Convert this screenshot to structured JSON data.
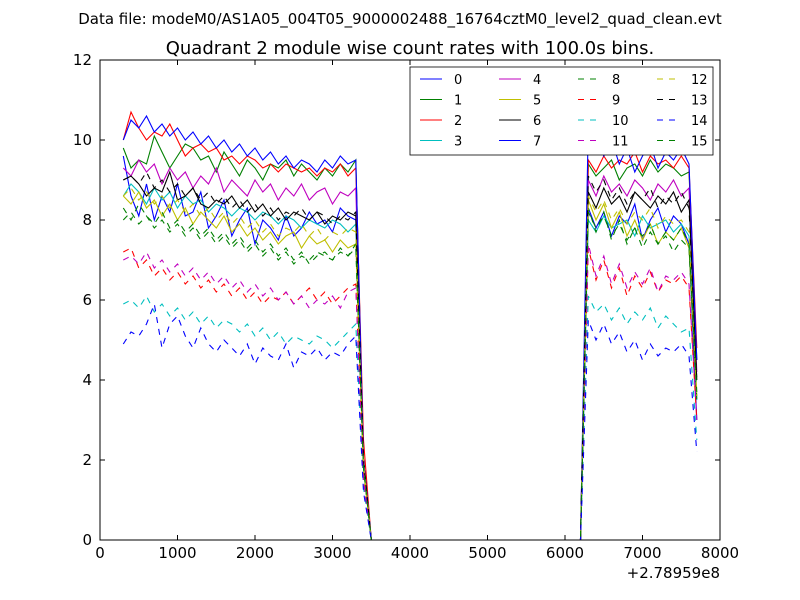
{
  "figure": {
    "suptitle": "Data file: modeM0/AS1A05_004T05_9000002488_16764cztM0_level2_quad_clean.evt"
  },
  "chart_data": {
    "type": "line",
    "title": "Quadrant 2 module wise count rates with 100.0s bins.",
    "xlabel": "",
    "ylabel": "",
    "x_offset_label": "+2.78959e8",
    "xlim": [
      0,
      8000
    ],
    "ylim": [
      0,
      12
    ],
    "xticks": [
      0,
      1000,
      2000,
      3000,
      4000,
      5000,
      6000,
      7000,
      8000
    ],
    "yticks": [
      0,
      2,
      4,
      6,
      8,
      10,
      12
    ],
    "grid": false,
    "legend_position": "top-right",
    "legend_columns": 4,
    "x": [
      300,
      400,
      500,
      600,
      700,
      800,
      900,
      1000,
      1100,
      1200,
      1300,
      1400,
      1500,
      1600,
      1700,
      1800,
      1900,
      2000,
      2100,
      2200,
      2300,
      2400,
      2500,
      2600,
      2700,
      2800,
      2900,
      3000,
      3100,
      3200,
      3300,
      3400,
      3500,
      3600,
      3700,
      3800,
      3900,
      4000,
      4500,
      5000,
      5500,
      6000,
      6100,
      6200,
      6300,
      6400,
      6500,
      6600,
      6700,
      6800,
      6900,
      7000,
      7100,
      7200,
      7300,
      7400,
      7500,
      7600,
      7700
    ],
    "series": [
      {
        "name": "0",
        "color": "#0000ff",
        "dash": "solid",
        "values": [
          9.6,
          8.6,
          8.1,
          8.9,
          8.0,
          8.6,
          8.2,
          8.9,
          8.1,
          8.2,
          8.7,
          7.8,
          8.1,
          8.5,
          7.6,
          8.0,
          8.3,
          7.4,
          8.0,
          7.8,
          7.5,
          8.1,
          7.6,
          7.8,
          8.2,
          7.9,
          8.0,
          7.7,
          8.3,
          8.1,
          8.0,
          2.0,
          0.0,
          0.0,
          0.0,
          0.0,
          0.0,
          0.0,
          0.0,
          0.0,
          0.0,
          0.0,
          0.0,
          0.0,
          8.3,
          7.8,
          8.2,
          7.6,
          8.1,
          7.9,
          8.4,
          7.5,
          8.0,
          8.3,
          7.7,
          8.1,
          7.9,
          7.4,
          3.0
        ]
      },
      {
        "name": "1",
        "color": "#008000",
        "dash": "solid",
        "values": [
          9.8,
          9.3,
          9.5,
          9.4,
          10.1,
          9.7,
          9.3,
          9.6,
          9.9,
          9.8,
          9.5,
          9.6,
          9.2,
          9.7,
          9.4,
          9.1,
          9.5,
          9.3,
          9.0,
          9.4,
          9.3,
          9.5,
          9.1,
          9.4,
          9.2,
          9.0,
          9.3,
          9.1,
          9.4,
          9.2,
          9.5,
          2.0,
          0.0,
          0.0,
          0.0,
          0.0,
          0.0,
          0.0,
          0.0,
          0.0,
          0.0,
          0.0,
          0.0,
          0.0,
          9.4,
          9.1,
          9.3,
          9.5,
          9.0,
          9.3,
          9.4,
          9.1,
          9.5,
          9.2,
          9.4,
          9.3,
          9.1,
          9.2,
          4.5
        ]
      },
      {
        "name": "2",
        "color": "#ff0000",
        "dash": "solid",
        "values": [
          10.0,
          10.7,
          10.3,
          10.0,
          10.2,
          10.1,
          10.4,
          10.0,
          9.6,
          9.8,
          9.9,
          9.7,
          9.8,
          9.5,
          9.6,
          9.4,
          9.6,
          9.5,
          9.3,
          9.4,
          9.2,
          9.4,
          9.3,
          9.2,
          9.3,
          9.1,
          9.3,
          9.2,
          9.4,
          9.1,
          9.3,
          2.5,
          0.0,
          0.0,
          0.0,
          0.0,
          0.0,
          0.0,
          0.0,
          0.0,
          0.0,
          0.0,
          0.0,
          0.0,
          9.5,
          9.2,
          9.6,
          9.3,
          9.5,
          9.4,
          9.7,
          9.2,
          9.6,
          9.4,
          9.5,
          9.3,
          9.6,
          9.3,
          4.8
        ]
      },
      {
        "name": "3",
        "color": "#00bfbf",
        "dash": "solid",
        "values": [
          8.6,
          8.9,
          8.7,
          8.4,
          8.8,
          8.5,
          8.7,
          8.3,
          8.6,
          8.4,
          8.5,
          8.2,
          8.4,
          8.3,
          8.1,
          8.3,
          8.2,
          8.0,
          8.2,
          8.1,
          7.9,
          8.1,
          8.0,
          7.8,
          8.0,
          7.9,
          7.8,
          8.0,
          7.9,
          7.7,
          7.9,
          2.0,
          0.0,
          0.0,
          0.0,
          0.0,
          0.0,
          0.0,
          0.0,
          0.0,
          0.0,
          0.0,
          0.0,
          0.0,
          8.0,
          7.7,
          8.1,
          7.8,
          7.9,
          8.0,
          7.6,
          8.1,
          7.8,
          7.9,
          8.0,
          7.7,
          7.9,
          7.6,
          3.5
        ]
      },
      {
        "name": "4",
        "color": "#bf00bf",
        "dash": "solid",
        "values": [
          9.3,
          9.1,
          9.5,
          9.2,
          9.4,
          8.9,
          9.3,
          9.0,
          9.2,
          8.8,
          9.1,
          8.9,
          9.3,
          8.7,
          9.0,
          8.8,
          8.6,
          9.0,
          8.7,
          8.9,
          8.5,
          8.8,
          8.6,
          8.9,
          8.5,
          8.7,
          8.8,
          8.4,
          8.7,
          8.6,
          8.8,
          2.0,
          0.0,
          0.0,
          0.0,
          0.0,
          0.0,
          0.0,
          0.0,
          0.0,
          0.0,
          0.0,
          0.0,
          0.0,
          9.0,
          8.6,
          9.1,
          8.7,
          8.9,
          8.6,
          9.0,
          8.8,
          8.5,
          8.9,
          8.7,
          9.0,
          8.6,
          8.8,
          4.2
        ]
      },
      {
        "name": "5",
        "color": "#bfbf00",
        "dash": "solid",
        "values": [
          8.6,
          8.4,
          8.7,
          8.3,
          8.5,
          8.1,
          8.4,
          8.0,
          8.3,
          7.9,
          8.2,
          8.0,
          7.8,
          8.1,
          7.7,
          7.9,
          7.6,
          7.8,
          7.5,
          7.7,
          7.4,
          7.6,
          7.7,
          7.3,
          7.6,
          7.4,
          7.5,
          7.2,
          7.5,
          7.3,
          7.4,
          1.8,
          0.0,
          0.0,
          0.0,
          0.0,
          0.0,
          0.0,
          0.0,
          0.0,
          0.0,
          0.0,
          0.0,
          0.0,
          8.5,
          8.0,
          8.4,
          7.8,
          8.2,
          7.6,
          8.0,
          7.5,
          7.9,
          7.4,
          7.7,
          7.5,
          7.8,
          7.3,
          3.6
        ]
      },
      {
        "name": "6",
        "color": "#000000",
        "dash": "solid",
        "values": [
          9.0,
          9.1,
          8.9,
          8.6,
          8.8,
          8.7,
          9.2,
          8.5,
          8.6,
          8.8,
          8.4,
          8.3,
          8.5,
          8.4,
          8.6,
          8.3,
          8.5,
          8.2,
          8.4,
          8.1,
          8.3,
          8.0,
          8.2,
          8.1,
          8.0,
          8.2,
          7.9,
          8.1,
          8.0,
          8.2,
          8.1,
          2.0,
          0.0,
          0.0,
          0.0,
          0.0,
          0.0,
          0.0,
          0.0,
          0.0,
          0.0,
          0.0,
          0.0,
          0.0,
          8.7,
          8.3,
          8.8,
          8.4,
          8.6,
          8.2,
          8.7,
          8.5,
          8.3,
          8.6,
          8.4,
          8.7,
          8.2,
          8.5,
          4.0
        ]
      },
      {
        "name": "7",
        "color": "#0000ff",
        "dash": "solid",
        "values": [
          10.0,
          10.5,
          10.3,
          10.6,
          10.2,
          10.4,
          10.1,
          10.3,
          10.0,
          10.2,
          9.9,
          10.1,
          9.8,
          10.0,
          9.7,
          9.9,
          9.6,
          9.8,
          9.5,
          9.7,
          9.4,
          9.6,
          9.3,
          9.5,
          9.4,
          9.2,
          9.5,
          9.3,
          9.6,
          9.4,
          9.5,
          2.0,
          0.0,
          0.0,
          0.0,
          0.0,
          0.0,
          0.0,
          0.0,
          0.0,
          0.0,
          0.0,
          0.0,
          0.0,
          10.4,
          10.5,
          9.6,
          10.0,
          9.4,
          9.8,
          9.2,
          9.6,
          9.9,
          9.3,
          9.7,
          9.5,
          9.8,
          9.4,
          4.5
        ]
      },
      {
        "name": "8",
        "color": "#008000",
        "dash": "dashed",
        "values": [
          8.3,
          8.0,
          8.4,
          8.1,
          7.9,
          8.2,
          7.8,
          8.0,
          7.7,
          7.9,
          7.6,
          7.8,
          7.5,
          7.7,
          7.4,
          7.6,
          7.3,
          7.5,
          7.2,
          7.4,
          7.1,
          7.3,
          7.0,
          7.2,
          6.9,
          7.1,
          7.2,
          7.0,
          7.3,
          7.1,
          7.4,
          1.8,
          0.0,
          0.0,
          0.0,
          0.0,
          0.0,
          0.0,
          0.0,
          0.0,
          0.0,
          0.0,
          0.0,
          0.0,
          8.3,
          7.7,
          8.2,
          7.5,
          8.0,
          7.4,
          7.8,
          7.3,
          7.7,
          7.4,
          7.6,
          7.2,
          7.5,
          7.3,
          3.5
        ]
      },
      {
        "name": "9",
        "color": "#ff0000",
        "dash": "dashed",
        "values": [
          7.2,
          7.3,
          6.8,
          7.0,
          6.6,
          6.8,
          6.5,
          6.7,
          6.4,
          6.6,
          6.3,
          6.5,
          6.2,
          6.4,
          6.1,
          6.3,
          6.0,
          6.2,
          5.9,
          6.1,
          6.0,
          6.2,
          5.9,
          6.1,
          6.3,
          6.0,
          6.2,
          5.9,
          6.1,
          6.3,
          6.4,
          1.5,
          0.0,
          0.0,
          0.0,
          0.0,
          0.0,
          0.0,
          0.0,
          0.0,
          0.0,
          0.0,
          0.0,
          0.0,
          7.3,
          6.5,
          7.0,
          6.3,
          6.8,
          6.1,
          6.6,
          6.3,
          6.7,
          6.2,
          6.5,
          6.4,
          6.6,
          6.3,
          3.0
        ]
      },
      {
        "name": "10",
        "color": "#00bfbf",
        "dash": "dashed",
        "values": [
          5.9,
          6.0,
          5.8,
          6.1,
          5.7,
          5.9,
          5.6,
          5.8,
          5.5,
          5.7,
          5.4,
          5.6,
          5.3,
          5.5,
          5.4,
          5.2,
          5.4,
          5.1,
          5.3,
          5.0,
          5.2,
          4.9,
          5.1,
          5.0,
          4.9,
          5.1,
          5.0,
          4.8,
          5.0,
          5.2,
          5.4,
          1.3,
          0.0,
          0.0,
          0.0,
          0.0,
          0.0,
          0.0,
          0.0,
          0.0,
          0.0,
          0.0,
          0.0,
          0.0,
          6.1,
          5.7,
          5.9,
          5.5,
          5.8,
          5.4,
          5.7,
          5.5,
          5.8,
          5.3,
          5.6,
          5.4,
          5.2,
          5.3,
          2.5
        ]
      },
      {
        "name": "11",
        "color": "#bf00bf",
        "dash": "dashed",
        "values": [
          7.0,
          7.1,
          6.9,
          7.2,
          6.8,
          7.0,
          6.7,
          6.9,
          6.6,
          6.8,
          6.5,
          6.7,
          6.4,
          6.6,
          6.3,
          6.5,
          6.2,
          6.4,
          6.1,
          6.3,
          6.0,
          6.2,
          5.9,
          6.1,
          5.8,
          6.0,
          5.9,
          6.1,
          5.8,
          6.2,
          6.3,
          1.5,
          0.0,
          0.0,
          0.0,
          0.0,
          0.0,
          0.0,
          0.0,
          0.0,
          0.0,
          0.0,
          0.0,
          0.0,
          7.4,
          6.6,
          7.1,
          6.4,
          6.9,
          6.3,
          6.7,
          6.4,
          6.8,
          6.2,
          6.6,
          6.5,
          6.7,
          6.4,
          3.0
        ]
      },
      {
        "name": "12",
        "color": "#bfbf00",
        "dash": "dashed",
        "values": [
          8.6,
          8.8,
          8.5,
          8.7,
          8.4,
          8.6,
          8.3,
          8.5,
          8.2,
          8.4,
          8.1,
          8.3,
          8.0,
          8.2,
          7.9,
          8.1,
          7.8,
          8.0,
          7.7,
          7.9,
          7.6,
          7.8,
          7.7,
          7.9,
          7.6,
          7.8,
          7.5,
          7.7,
          7.6,
          7.8,
          7.7,
          1.9,
          0.0,
          0.0,
          0.0,
          0.0,
          0.0,
          0.0,
          0.0,
          0.0,
          0.0,
          0.0,
          0.0,
          0.0,
          8.6,
          8.2,
          8.5,
          8.0,
          8.3,
          7.9,
          8.2,
          8.0,
          8.3,
          7.8,
          8.1,
          7.9,
          8.0,
          7.7,
          3.6
        ]
      },
      {
        "name": "13",
        "color": "#000000",
        "dash": "dashed",
        "values": [
          9.0,
          9.1,
          8.9,
          9.2,
          8.8,
          9.0,
          8.7,
          8.9,
          8.6,
          8.8,
          8.5,
          8.7,
          8.4,
          8.6,
          8.3,
          8.5,
          8.2,
          8.4,
          8.1,
          8.3,
          8.0,
          8.2,
          8.1,
          8.3,
          8.0,
          8.2,
          8.1,
          7.9,
          8.1,
          8.0,
          8.2,
          2.0,
          0.0,
          0.0,
          0.0,
          0.0,
          0.0,
          0.0,
          0.0,
          0.0,
          0.0,
          0.0,
          0.0,
          0.0,
          9.1,
          8.7,
          9.0,
          8.5,
          8.8,
          8.4,
          8.7,
          8.5,
          8.8,
          8.3,
          8.6,
          8.4,
          8.7,
          8.3,
          4.0
        ]
      },
      {
        "name": "14",
        "color": "#0000ff",
        "dash": "dashed",
        "values": [
          4.9,
          5.2,
          5.1,
          5.4,
          5.9,
          4.8,
          5.4,
          5.6,
          5.1,
          4.8,
          5.3,
          4.9,
          4.7,
          5.0,
          4.8,
          4.6,
          4.9,
          4.4,
          4.8,
          4.6,
          4.5,
          4.9,
          4.3,
          4.7,
          4.6,
          4.8,
          4.5,
          4.7,
          4.6,
          4.9,
          5.1,
          1.2,
          0.0,
          0.0,
          0.0,
          0.0,
          0.0,
          0.0,
          0.0,
          0.0,
          0.0,
          0.0,
          0.0,
          0.0,
          5.5,
          5.0,
          5.4,
          4.9,
          5.2,
          4.7,
          5.0,
          4.5,
          4.9,
          4.6,
          4.8,
          4.7,
          4.9,
          4.6,
          2.2
        ]
      },
      {
        "name": "15",
        "color": "#008000",
        "dash": "dashed",
        "values": [
          8.0,
          8.2,
          7.9,
          8.1,
          7.8,
          8.0,
          7.7,
          7.9,
          7.6,
          7.8,
          7.5,
          7.7,
          7.4,
          7.6,
          7.3,
          7.5,
          7.2,
          7.4,
          7.1,
          7.3,
          7.0,
          7.2,
          6.9,
          7.1,
          7.0,
          7.2,
          7.1,
          7.0,
          7.2,
          7.1,
          7.3,
          1.8,
          0.0,
          0.0,
          0.0,
          0.0,
          0.0,
          0.0,
          0.0,
          0.0,
          0.0,
          0.0,
          0.0,
          0.0,
          8.2,
          7.8,
          8.1,
          7.6,
          7.9,
          7.5,
          7.8,
          7.6,
          7.9,
          7.4,
          7.7,
          7.5,
          7.8,
          7.4,
          3.7
        ]
      }
    ]
  }
}
